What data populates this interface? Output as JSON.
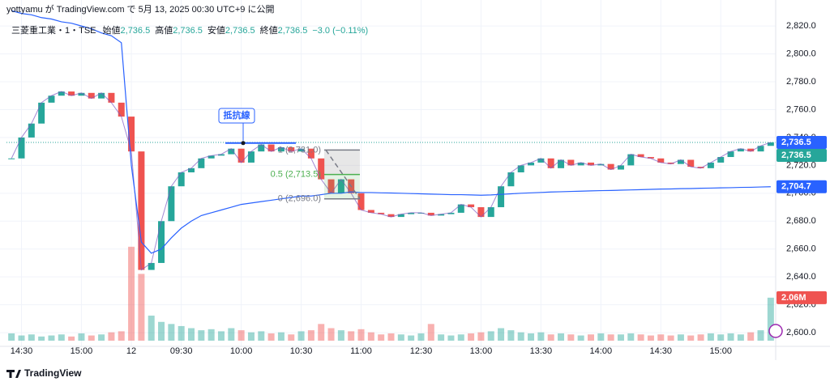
{
  "header": {
    "text": "yottyamu が TradingView.com で 5月 13, 2025 00:30 UTC+9 に公開"
  },
  "footer": {
    "brand": "TradingView"
  },
  "chart_data": {
    "type": "candles",
    "legend_title": "三菱重工業・1・TSE",
    "ohlc_labels": [
      "始値",
      "高値",
      "安値",
      "終値"
    ],
    "ohlc_values": [
      2736.5,
      2736.5,
      2736.5,
      2736.5
    ],
    "ohlc_value_labels": [
      "2,736.5",
      "2,736.5",
      "2,736.5",
      "2,736.5"
    ],
    "change_label": "−3.0 (−0.11%)",
    "categories": [
      null,
      "14:30",
      null,
      null,
      null,
      null,
      null,
      "15:00",
      null,
      null,
      null,
      null,
      "12",
      null,
      null,
      null,
      null,
      "09:30",
      null,
      null,
      null,
      null,
      null,
      "10:00",
      null,
      null,
      null,
      null,
      null,
      "10:30",
      null,
      null,
      null,
      null,
      null,
      "11:00",
      null,
      null,
      null,
      null,
      null,
      "12:30",
      null,
      null,
      null,
      null,
      null,
      "13:00",
      null,
      null,
      null,
      null,
      null,
      "13:30",
      null,
      null,
      null,
      null,
      null,
      "14:00",
      null,
      null,
      null,
      null,
      null,
      "14:30",
      null,
      null,
      null,
      null,
      null,
      "15:00",
      null,
      null,
      null,
      null,
      null
    ],
    "series": [
      {
        "color": "#26a69a",
        "down_color": "#ef5350",
        "values": [
          2725,
          2740,
          2750,
          2765,
          2770,
          2773,
          2770,
          2772,
          2768,
          2772,
          2765,
          2755,
          2730,
          2645,
          2650,
          2680,
          2705,
          2715,
          2718,
          2725,
          2727,
          2728,
          2732,
          2722,
          2730,
          2735,
          2730,
          2733,
          2730,
          2732,
          2725,
          2710,
          2700,
          2710,
          2700,
          2688,
          2686,
          2685,
          2683,
          2685,
          2686,
          2686,
          2684,
          2685,
          2686,
          2692,
          2690,
          2683,
          2690,
          2705,
          2715,
          2720,
          2722,
          2725,
          2718,
          2724,
          2720,
          2722,
          2720,
          2721,
          2717,
          2720,
          2728,
          2726,
          2725,
          2722,
          2721,
          2724,
          2719,
          2718,
          2722,
          2726,
          2730,
          2732,
          2730,
          2734,
          2736.5
        ]
      },
      {
        "color": "#2962ff",
        "values": [
          2831,
          2829,
          2828,
          2826,
          2825,
          2823,
          2822,
          2820,
          2818,
          2815,
          2813,
          2808,
          2720,
          2665,
          2657,
          2660,
          2668,
          2675,
          2680,
          2684,
          2686,
          2688,
          2690,
          2692,
          2693,
          2694,
          2695,
          2696,
          2697,
          2698,
          2698,
          2699,
          2700,
          2700,
          2701,
          2700.5,
          2700.5,
          2700.3,
          2700.2,
          2700,
          2699.8,
          2699.6,
          2699.4,
          2699.2,
          2699,
          2699,
          2698.8,
          2698.6,
          2698.8,
          2699.2,
          2699.6,
          2700,
          2700.3,
          2700.6,
          2700.9,
          2701.1,
          2701.3,
          2701.5,
          2701.7,
          2701.9,
          2702,
          2702.2,
          2702.4,
          2702.6,
          2702.8,
          2703,
          2703.1,
          2703.3,
          2703.4,
          2703.6,
          2703.7,
          2703.9,
          2704,
          2704.2,
          2704.3,
          2704.5,
          2704.7
        ]
      },
      {
        "axis": "y2",
        "color": "#26a69a",
        "down_color": "#ef5350",
        "values": [
          0.35,
          0.25,
          0.3,
          0.2,
          0.25,
          0.3,
          0.2,
          0.35,
          0.25,
          0.3,
          0.4,
          0.45,
          4.5,
          3.2,
          1.2,
          0.9,
          0.8,
          0.7,
          0.6,
          0.5,
          0.55,
          0.45,
          0.6,
          0.5,
          0.4,
          0.45,
          0.35,
          0.4,
          0.3,
          0.45,
          0.5,
          0.8,
          0.6,
          0.5,
          0.45,
          0.55,
          0.4,
          0.3,
          0.35,
          0.3,
          0.25,
          0.35,
          0.8,
          0.3,
          0.25,
          0.3,
          0.35,
          0.4,
          0.45,
          0.6,
          0.5,
          0.4,
          0.35,
          0.4,
          0.3,
          0.35,
          0.3,
          0.25,
          0.3,
          0.35,
          0.3,
          0.3,
          0.35,
          0.3,
          0.25,
          0.3,
          0.25,
          0.3,
          0.25,
          0.3,
          0.35,
          0.3,
          0.35,
          0.3,
          0.4,
          0.5,
          2.06
        ]
      }
    ],
    "ylim": [
      2590,
      2834
    ],
    "yticks": [
      {
        "value": 2600,
        "label": "2,600.0"
      },
      {
        "value": 2620,
        "label": "2,620.0"
      },
      {
        "value": 2640,
        "label": "2,640.0"
      },
      {
        "value": 2660,
        "label": "2,660.0"
      },
      {
        "value": 2680,
        "label": "2,680.0"
      },
      {
        "value": 2700,
        "label": "2,700.0"
      },
      {
        "value": 2720,
        "label": "2,720.0"
      },
      {
        "value": 2740,
        "label": "2,740.0"
      },
      {
        "value": 2760,
        "label": "2,760.0"
      },
      {
        "value": 2780,
        "label": "2,780.0"
      },
      {
        "value": 2800,
        "label": "2,800.0"
      },
      {
        "value": 2820,
        "label": "2,820.0"
      }
    ],
    "y2lim": [
      0,
      5
    ],
    "grid": true,
    "price_markers": [
      {
        "value": 2736.5,
        "label": "2,736.5",
        "color": "#2962ff"
      },
      {
        "value": 2736.5,
        "label": "2,736.5",
        "color": "#26a69a"
      },
      {
        "value": 2704.7,
        "label": "2,704.7",
        "color": "#2962ff"
      }
    ],
    "volume_marker": {
      "value": 2.06,
      "label": "2.06M",
      "color": "#ef5350"
    },
    "resistance": {
      "label": "抵抗線",
      "value": 2736,
      "color": "#2962ff"
    },
    "fib_levels": [
      {
        "value": 2731,
        "label": "1 (2,731.0)",
        "color": "#787b86"
      },
      {
        "value": 2713.5,
        "label": "0.5 (2,713.5)",
        "color": "#4caf50"
      },
      {
        "value": 2696,
        "label": "0 (2,696.0)",
        "color": "#787b86"
      }
    ]
  }
}
